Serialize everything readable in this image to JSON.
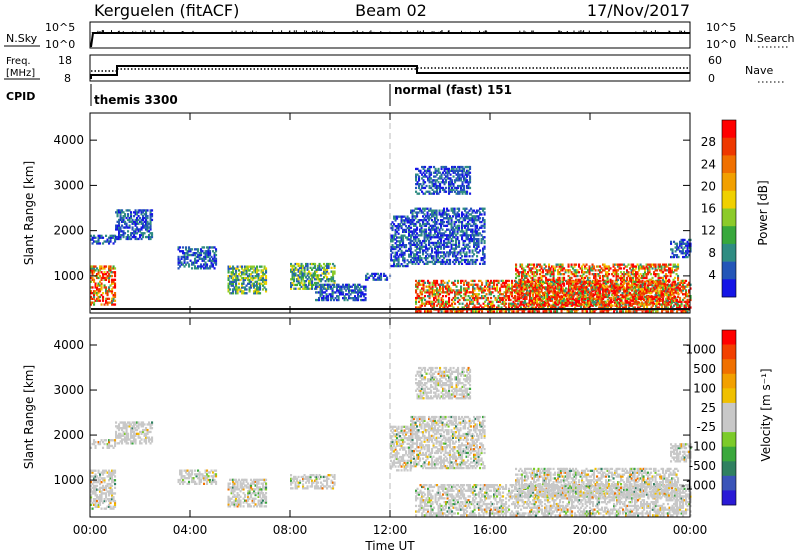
{
  "header": {
    "station": "Kerguelen (fitACF)",
    "beam": "Beam 02",
    "date": "17/Nov/2017"
  },
  "status_panels": {
    "nsky_label": "N.Sky",
    "nsky_ticks": [
      "10^5",
      "10^0"
    ],
    "nsearch_label": "N.Search",
    "freq_label_1": "Freq.",
    "freq_label_2": "[MHz]",
    "freq_ticks": [
      "18",
      "8"
    ],
    "nave_ticks": [
      "60",
      "0"
    ],
    "nave_label": "Nave",
    "cpid_label": "CPID",
    "cpid_segments": [
      {
        "label": "themis 3300",
        "start": "00:00",
        "end": "12:00"
      },
      {
        "label": "normal (fast) 151",
        "start": "12:00",
        "end": "24:00"
      }
    ]
  },
  "chart_data": [
    {
      "type": "heatmap",
      "name": "power",
      "ylabel": "Slant Range [km]",
      "y_ticks": [
        1000,
        2000,
        3000,
        4000
      ],
      "ylim": [
        180,
        4600
      ],
      "xlim": [
        0,
        24
      ],
      "colorbar_title": "Power [dB]",
      "colorbar_ticks": [
        "4",
        "8",
        "12",
        "16",
        "20",
        "24",
        "28"
      ],
      "colorbar_colors": [
        "#1515e6",
        "#2456b8",
        "#2f8c82",
        "#38a83c",
        "#8ccb2a",
        "#f0d000",
        "#f2a000",
        "#f07000",
        "#ee3800",
        "#ff0000"
      ],
      "regions": [
        {
          "t0": 0.0,
          "t1": 1.0,
          "r0": 350,
          "r1": 1230,
          "level": "strong"
        },
        {
          "t0": 0.0,
          "t1": 1.0,
          "r0": 1700,
          "r1": 1900,
          "level": "weak"
        },
        {
          "t0": 1.0,
          "t1": 2.5,
          "r0": 1800,
          "r1": 2450,
          "level": "weak"
        },
        {
          "t0": 3.5,
          "t1": 5.0,
          "r0": 1150,
          "r1": 1650,
          "level": "weak"
        },
        {
          "t0": 5.5,
          "t1": 7.0,
          "r0": 600,
          "r1": 1200,
          "level": "medium"
        },
        {
          "t0": 8.0,
          "t1": 9.8,
          "r0": 700,
          "r1": 1250,
          "level": "medium"
        },
        {
          "t0": 9.0,
          "t1": 11.0,
          "r0": 450,
          "r1": 800,
          "level": "weak"
        },
        {
          "t0": 11.0,
          "t1": 12.0,
          "r0": 900,
          "r1": 1050,
          "level": "weak"
        },
        {
          "t0": 12.0,
          "t1": 12.8,
          "r0": 1200,
          "r1": 2300,
          "level": "weak"
        },
        {
          "t0": 12.8,
          "t1": 15.8,
          "r0": 1250,
          "r1": 2500,
          "level": "weak"
        },
        {
          "t0": 13.0,
          "t1": 15.2,
          "r0": 2800,
          "r1": 3400,
          "level": "weak"
        },
        {
          "t0": 13.0,
          "t1": 24.0,
          "r0": 200,
          "r1": 900,
          "level": "strong"
        },
        {
          "t0": 17.0,
          "t1": 23.5,
          "r0": 350,
          "r1": 1250,
          "level": "strong"
        },
        {
          "t0": 23.2,
          "t1": 24.0,
          "r0": 1400,
          "r1": 1800,
          "level": "weak"
        }
      ]
    },
    {
      "type": "heatmap",
      "name": "velocity",
      "ylabel": "Slant Range [km]",
      "y_ticks": [
        1000,
        2000,
        3000,
        4000
      ],
      "ylim": [
        180,
        4600
      ],
      "xlim": [
        0,
        24
      ],
      "xlabel": "Time UT",
      "x_ticks": [
        "00:00",
        "04:00",
        "08:00",
        "12:00",
        "16:00",
        "20:00",
        "00:00"
      ],
      "colorbar_title": "Velocity [m s⁻¹]",
      "colorbar_ticks": [
        "1000",
        "500",
        "100",
        "25",
        "-25",
        "-100",
        "-500",
        "-1000"
      ],
      "colorbar_colors": [
        "#2a1ad6",
        "#3a54b8",
        "#2f8060",
        "#3aa83c",
        "#7ccb2a",
        "#c8c8c8",
        "#c8c8c8",
        "#f0c000",
        "#f2a000",
        "#f07000",
        "#f24000",
        "#ff0000"
      ],
      "regions": [
        {
          "t0": 0.0,
          "t1": 1.0,
          "r0": 350,
          "r1": 1230
        },
        {
          "t0": 0.0,
          "t1": 1.0,
          "r0": 1700,
          "r1": 1900
        },
        {
          "t0": 1.0,
          "t1": 2.5,
          "r0": 1800,
          "r1": 2300
        },
        {
          "t0": 3.5,
          "t1": 5.0,
          "r0": 900,
          "r1": 1200
        },
        {
          "t0": 5.5,
          "t1": 7.0,
          "r0": 400,
          "r1": 1000
        },
        {
          "t0": 8.0,
          "t1": 9.8,
          "r0": 800,
          "r1": 1100
        },
        {
          "t0": 12.0,
          "t1": 12.8,
          "r0": 1200,
          "r1": 2200
        },
        {
          "t0": 12.8,
          "t1": 15.8,
          "r0": 1250,
          "r1": 2400
        },
        {
          "t0": 13.0,
          "t1": 15.2,
          "r0": 2800,
          "r1": 3500
        },
        {
          "t0": 13.0,
          "t1": 24.0,
          "r0": 200,
          "r1": 900
        },
        {
          "t0": 17.0,
          "t1": 23.5,
          "r0": 600,
          "r1": 1250
        },
        {
          "t0": 23.2,
          "t1": 24.0,
          "r0": 1400,
          "r1": 1800
        }
      ]
    }
  ]
}
